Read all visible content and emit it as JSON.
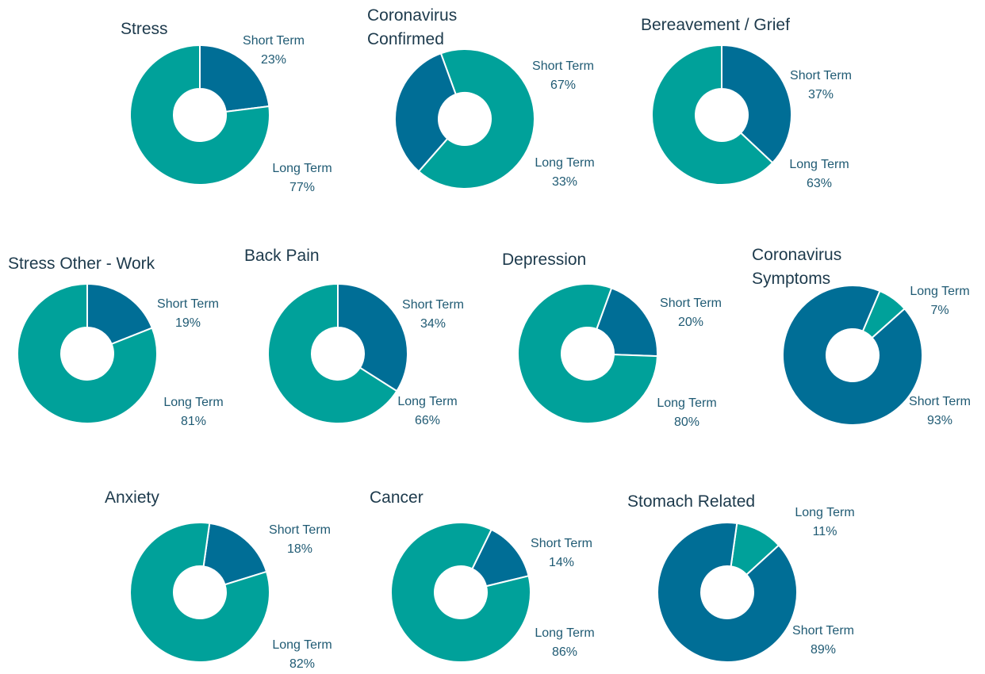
{
  "chart_data": [
    {
      "type": "pie",
      "title": "Stress",
      "categories": [
        "Short Term",
        "Long Term"
      ],
      "values": [
        23,
        77
      ],
      "value_labels": [
        "23%",
        "77%"
      ],
      "colors": [
        "#006e96",
        "#00a19a"
      ]
    },
    {
      "type": "pie",
      "title": "Coronavirus Confirmed",
      "categories": [
        "Short Term",
        "Long Term"
      ],
      "values": [
        67,
        33
      ],
      "value_labels": [
        "67%",
        "33%"
      ],
      "colors": [
        "#00a19a",
        "#006e96"
      ]
    },
    {
      "type": "pie",
      "title": "Bereavement / Grief",
      "categories": [
        "Short Term",
        "Long Term"
      ],
      "values": [
        37,
        63
      ],
      "value_labels": [
        "37%",
        "63%"
      ],
      "colors": [
        "#006e96",
        "#00a19a"
      ]
    },
    {
      "type": "pie",
      "title": "Stress Other - Work",
      "categories": [
        "Short Term",
        "Long Term"
      ],
      "values": [
        19,
        81
      ],
      "value_labels": [
        "19%",
        "81%"
      ],
      "colors": [
        "#006e96",
        "#00a19a"
      ]
    },
    {
      "type": "pie",
      "title": "Back Pain",
      "categories": [
        "Short Term",
        "Long Term"
      ],
      "values": [
        34,
        66
      ],
      "value_labels": [
        "34%",
        "66%"
      ],
      "colors": [
        "#006e96",
        "#00a19a"
      ]
    },
    {
      "type": "pie",
      "title": "Depression",
      "categories": [
        "Short Term",
        "Long Term"
      ],
      "values": [
        20,
        80
      ],
      "value_labels": [
        "20%",
        "80%"
      ],
      "colors": [
        "#006e96",
        "#00a19a"
      ]
    },
    {
      "type": "pie",
      "title": "Coronavirus Symptoms",
      "categories": [
        "Long Term",
        "Short Term"
      ],
      "values": [
        7,
        93
      ],
      "value_labels": [
        "7%",
        "93%"
      ],
      "colors": [
        "#00a19a",
        "#006e96"
      ]
    },
    {
      "type": "pie",
      "title": "Anxiety",
      "categories": [
        "Short Term",
        "Long Term"
      ],
      "values": [
        18,
        82
      ],
      "value_labels": [
        "18%",
        "82%"
      ],
      "colors": [
        "#006e96",
        "#00a19a"
      ]
    },
    {
      "type": "pie",
      "title": "Cancer",
      "categories": [
        "Short Term",
        "Long Term"
      ],
      "values": [
        14,
        86
      ],
      "value_labels": [
        "14%",
        "86%"
      ],
      "colors": [
        "#006e96",
        "#00a19a"
      ]
    },
    {
      "type": "pie",
      "title": "Stomach Related",
      "categories": [
        "Long Term",
        "Short Term"
      ],
      "values": [
        11,
        89
      ],
      "value_labels": [
        "11%",
        "89%"
      ],
      "colors": [
        "#00a19a",
        "#006e96"
      ]
    }
  ]
}
